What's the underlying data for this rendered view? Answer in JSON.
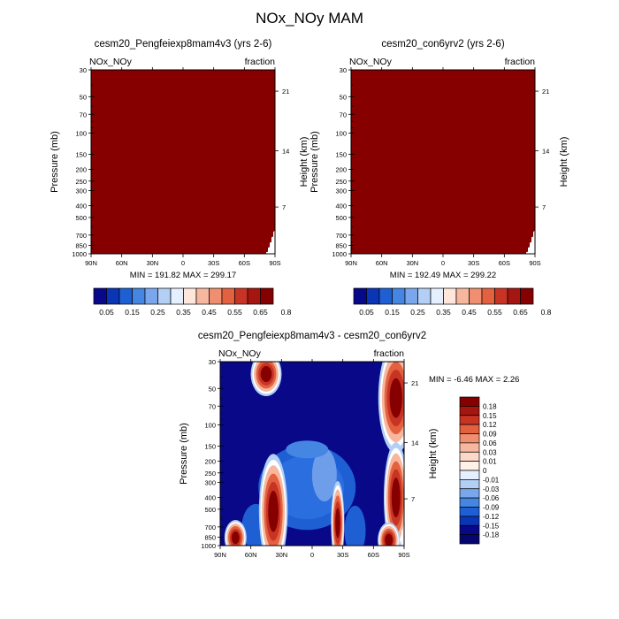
{
  "title": "NOx_NOy MAM",
  "chart_data": [
    {
      "type": "heatmap",
      "title": "cesm20_Pengfeiexp8mam4v3 (yrs 2-6)",
      "left_label": "NOx_NOy",
      "right_label": "fraction",
      "ylabel": "Pressure (mb)",
      "ylabel_right": "Height (km)",
      "x_ticks": [
        "90N",
        "60N",
        "30N",
        "0",
        "30S",
        "60S",
        "90S"
      ],
      "y_ticks": [
        "30",
        "50",
        "70",
        "100",
        "150",
        "200",
        "250",
        "300",
        "400",
        "500",
        "700",
        "850",
        "1000"
      ],
      "y_ticks_right": [
        "21",
        "14",
        "7"
      ],
      "ylim": [
        1000,
        30
      ],
      "xlim": [
        90,
        -90
      ],
      "field": "near-uniform maximum (dark red) everywhere; white missing wedge near 90S at surface",
      "min": "191.82",
      "max": "299.17",
      "min_max_text": "MIN = 191.82  MAX = 299.17"
    },
    {
      "type": "heatmap",
      "title": "cesm20_con6yrv2 (yrs 2-6)",
      "left_label": "NOx_NOy",
      "right_label": "fraction",
      "ylabel": "Pressure (mb)",
      "ylabel_right": "Height (km)",
      "x_ticks": [
        "90N",
        "60N",
        "30N",
        "0",
        "30S",
        "60S",
        "90S"
      ],
      "y_ticks": [
        "30",
        "50",
        "70",
        "100",
        "150",
        "200",
        "250",
        "300",
        "400",
        "500",
        "700",
        "850",
        "1000"
      ],
      "y_ticks_right": [
        "21",
        "14",
        "7"
      ],
      "ylim": [
        1000,
        30
      ],
      "xlim": [
        90,
        -90
      ],
      "field": "near-uniform maximum (dark red) everywhere; white missing wedge near 90S at surface",
      "min": "192.49",
      "max": "299.22",
      "min_max_text": "MIN = 192.49  MAX = 299.22"
    },
    {
      "type": "heatmap",
      "title": "cesm20_Pengfeiexp8mam4v3 - cesm20_con6yrv2",
      "left_label": "NOx_NOy",
      "right_label": "fraction",
      "ylabel": "Pressure (mb)",
      "ylabel_right": "Height (km)",
      "x_ticks": [
        "90N",
        "60N",
        "30N",
        "0",
        "30S",
        "60S",
        "90S"
      ],
      "y_ticks": [
        "30",
        "50",
        "70",
        "100",
        "150",
        "200",
        "250",
        "300",
        "400",
        "500",
        "700",
        "850",
        "1000"
      ],
      "y_ticks_right": [
        "21",
        "14",
        "7"
      ],
      "ylim": [
        1000,
        30
      ],
      "xlim": [
        90,
        -90
      ],
      "min": "-6.46",
      "max": "2.26",
      "min_max_text": "MIN = -6.46  MAX =   2.26",
      "features": [
        {
          "kind": "positive",
          "desc": "upper-level maximum near 45N, 30-80 mb"
        },
        {
          "kind": "positive",
          "desc": "upper-level band near 70-90S, 30-250 mb, extending down to surface"
        },
        {
          "kind": "positive",
          "desc": "lower tropospheric maximum near 40N, 250-1000 mb"
        },
        {
          "kind": "positive",
          "desc": "surface maximum near 75N, 700-1000 mb"
        },
        {
          "kind": "positive",
          "desc": "weak positive patch near 25S, 350-900 mb"
        },
        {
          "kind": "negative",
          "desc": "large negative region (dark blue) elsewhere, with weaker negative band 150-800 mb in tropics"
        }
      ]
    }
  ],
  "colorbar_top": {
    "labels": [
      "0.05",
      "0.15",
      "0.25",
      "0.35",
      "0.45",
      "0.55",
      "0.65",
      "0.8"
    ],
    "colors": [
      "#08088a",
      "#0a35b5",
      "#1f5fd4",
      "#4486e2",
      "#7aa7ec",
      "#b3cff5",
      "#e4efff",
      "#ffe6da",
      "#f7b79f",
      "#f08f6f",
      "#e3613f",
      "#c83424",
      "#a51610",
      "#850000"
    ]
  },
  "colorbar_diff": {
    "labels": [
      "0.18",
      "0.15",
      "0.12",
      "0.09",
      "0.06",
      "0.03",
      "0.01",
      "0",
      "-0.01",
      "-0.03",
      "-0.06",
      "-0.09",
      "-0.12",
      "-0.15",
      "-0.18"
    ],
    "colors": [
      "#850000",
      "#a51610",
      "#c83424",
      "#e3613f",
      "#f08f6f",
      "#f7b79f",
      "#fcd8c8",
      "#fff0e8",
      "#e4efff",
      "#b3cff5",
      "#7aa7ec",
      "#4486e2",
      "#1f5fd4",
      "#0a35b5",
      "#08088a",
      "#060670"
    ]
  }
}
